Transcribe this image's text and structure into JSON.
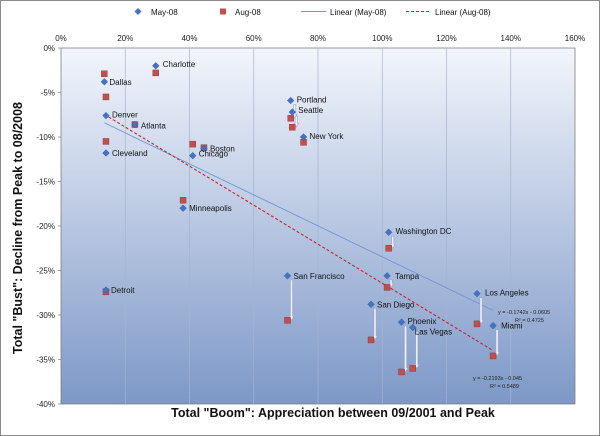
{
  "chart_data": {
    "type": "scatter",
    "title": "",
    "xlabel": "Total \"Boom\": Appreciation between 09/2001 and Peak",
    "ylabel": "Total \"Bust\": Decline from Peak to 08/2008",
    "xlim": [
      0,
      160
    ],
    "ylim": [
      -40,
      0
    ],
    "x_ticks": [
      "0%",
      "20%",
      "40%",
      "60%",
      "80%",
      "100%",
      "120%",
      "140%",
      "160%"
    ],
    "y_ticks": [
      "0%",
      "-5%",
      "-10%",
      "-15%",
      "-20%",
      "-25%",
      "-30%",
      "-35%",
      "-40%"
    ],
    "x_tick_values": [
      0,
      20,
      40,
      60,
      80,
      100,
      120,
      140,
      160
    ],
    "y_tick_values": [
      0,
      -5,
      -10,
      -15,
      -20,
      -25,
      -30,
      -35,
      -40
    ],
    "unit": "%",
    "x_axis_position": "top",
    "grid": "vertical",
    "legend_position": "top",
    "legend": {
      "may": "May-08",
      "aug": "Aug-08",
      "lin_may": "Linear (May-08)",
      "lin_aug": "Linear (Aug-08)"
    },
    "colors": {
      "may": "#4472c4",
      "aug": "#c0504d",
      "trend_may": "#6f96d8",
      "trend_aug": "#c0272d",
      "arrow": "#9aa3c9",
      "bg_top": "#f2f5fc",
      "bg_bottom": "#7d98c7"
    },
    "cities": [
      {
        "name": "Charlotte",
        "x": 29.5,
        "may": -2.0,
        "aug": -2.8
      },
      {
        "name": "Dallas",
        "x": 13.5,
        "may": -3.8,
        "aug": -2.9
      },
      {
        "name": "Denver",
        "x": 14.0,
        "may": -7.6,
        "aug": -5.5
      },
      {
        "name": "Atlanta",
        "x": 23.0,
        "may": -8.6,
        "aug": -8.6
      },
      {
        "name": "Cleveland",
        "x": 14.0,
        "may": -11.8,
        "aug": -10.5
      },
      {
        "name": "Chicago",
        "x": 41.0,
        "may": -12.1,
        "aug": -10.8
      },
      {
        "name": "Boston",
        "x": 44.5,
        "may": -11.3,
        "aug": -11.2
      },
      {
        "name": "Minneapolis",
        "x": 38.0,
        "may": -18.0,
        "aug": -17.1
      },
      {
        "name": "Detroit",
        "x": 14.0,
        "may": -27.2,
        "aug": -27.4
      },
      {
        "name": "Portland",
        "x": 71.5,
        "may": -5.9,
        "aug": -7.9
      },
      {
        "name": "Seattle",
        "x": 72.0,
        "may": -7.2,
        "aug": -8.9
      },
      {
        "name": "New York",
        "x": 75.5,
        "may": -10.0,
        "aug": -10.6
      },
      {
        "name": "Washington DC",
        "x": 102.0,
        "may": -20.7,
        "aug": -22.5
      },
      {
        "name": "San Francisco",
        "x": 70.5,
        "may": -25.6,
        "aug": -30.6
      },
      {
        "name": "Tampa",
        "x": 101.5,
        "may": -25.6,
        "aug": -26.9
      },
      {
        "name": "San Diego",
        "x": 96.5,
        "may": -28.8,
        "aug": -32.8
      },
      {
        "name": "Phoenix",
        "x": 106.0,
        "may": -30.8,
        "aug": -36.4
      },
      {
        "name": "Las Vegas",
        "x": 109.5,
        "may": -31.4,
        "aug": -36.0
      },
      {
        "name": "Los Angeles",
        "x": 129.5,
        "may": -27.6,
        "aug": -31.0
      },
      {
        "name": "Miami",
        "x": 134.5,
        "may": -31.2,
        "aug": -34.6
      }
    ],
    "trendlines": [
      {
        "series": "May-08",
        "slope": -0.1742,
        "intercept": -0.0605,
        "x_range": [
          13.5,
          134.5
        ],
        "equation": "y = -0.1742x - 0.0605",
        "r2": "R² = 0.4725"
      },
      {
        "series": "Aug-08",
        "slope": -0.2193,
        "intercept": -0.045,
        "x_range": [
          13.5,
          134.5
        ],
        "equation": "y = -0.2193x - 0.045",
        "r2": "R² = 0.5489"
      }
    ]
  }
}
